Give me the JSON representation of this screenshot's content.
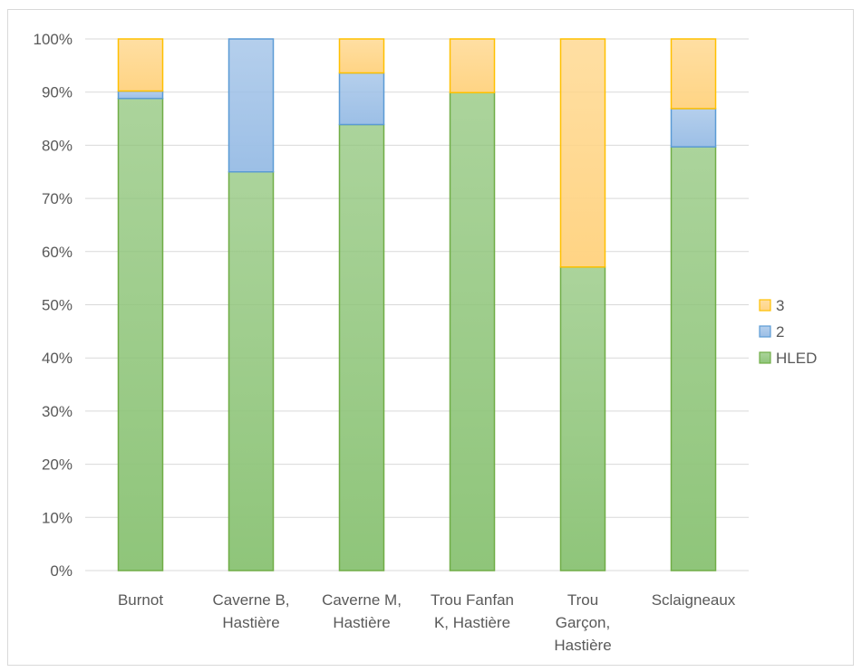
{
  "chart_data": {
    "type": "bar",
    "stacked": true,
    "percent": true,
    "categories": [
      "Burnot",
      "Caverne B, Hastière",
      "Caverne M, Hastière",
      "Trou Fanfan K, Hastière",
      "Trou Garçon, Hastière",
      "Sclaigneaux"
    ],
    "category_label_lines": [
      [
        "Burnot"
      ],
      [
        "Caverne B,",
        "Hastière"
      ],
      [
        "Caverne M,",
        "Hastière"
      ],
      [
        "Trou Fanfan",
        "K, Hastière"
      ],
      [
        "Trou",
        "Garçon,",
        "Hastière"
      ],
      [
        "Sclaigneaux"
      ]
    ],
    "series": [
      {
        "name": "HLED",
        "values": [
          88.8,
          75.0,
          83.9,
          89.9,
          57.1,
          79.7
        ],
        "color": "#8fc57a",
        "stroke": "#70ad47"
      },
      {
        "name": "2",
        "values": [
          1.4,
          25.0,
          9.7,
          0,
          0,
          7.2
        ],
        "color": "#9cbfe6",
        "stroke": "#5b9bd5"
      },
      {
        "name": "3",
        "values": [
          9.8,
          0,
          6.4,
          10.1,
          42.9,
          13.1
        ],
        "color": "#ffd484",
        "stroke": "#ffc000"
      }
    ],
    "y_ticks": [
      "0%",
      "10%",
      "20%",
      "30%",
      "40%",
      "50%",
      "60%",
      "70%",
      "80%",
      "90%",
      "100%"
    ],
    "ylim": [
      0,
      100
    ],
    "grid": true,
    "legend_position": "right",
    "legend_order": [
      "3",
      "2",
      "HLED"
    ],
    "title": "",
    "xlabel": "",
    "ylabel": ""
  }
}
